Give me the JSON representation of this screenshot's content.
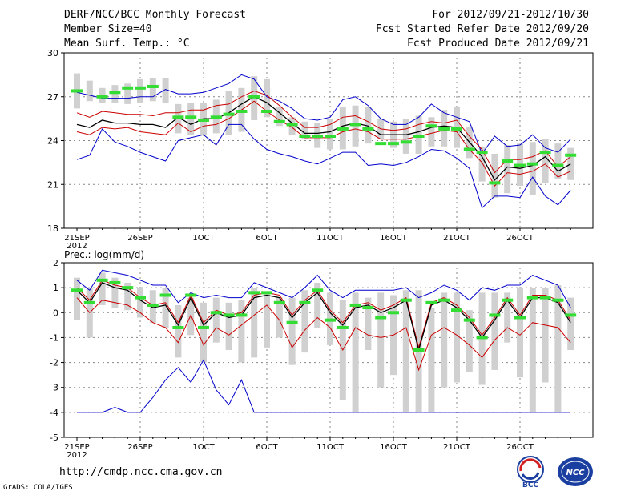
{
  "header": {
    "title": "DERF/NCC/BCC Monthly Forecast",
    "member_size": "Member Size=40",
    "variable": "Mean Surf. Temp.: °C",
    "period": "For 2012/09/21-2012/10/30",
    "fcst_started": "Fcst Started Refer Date 2012/09/20",
    "fcst_produced": "Fcst Produced Date 2012/09/21"
  },
  "footer": {
    "url": "http://cmdp.ncc.cma.gov.cn",
    "grads": "GrADS: COLA/IGES",
    "logo_bcc": "BCC",
    "logo_ncc": "NCC"
  },
  "colors": {
    "mean": "#000000",
    "spread": "#cc0000",
    "extreme": "#0000cc",
    "box": "#d0d0d0",
    "obs": "#33dd33"
  },
  "chart_data": [
    {
      "type": "ensemble-box-line",
      "title": "Mean Surf. Temp.: °C",
      "x_tick_labels": [
        "21SEP",
        "26SEP",
        "1OCT",
        "6OCT",
        "11OCT",
        "16OCT",
        "21OCT",
        "26OCT"
      ],
      "x_year_label": "2012",
      "x_start_day": 0,
      "days": 40,
      "ylim": [
        18,
        30
      ],
      "y_ticks": [
        18,
        21,
        24,
        27,
        30
      ],
      "box_low": [
        26.2,
        26.7,
        26.6,
        26.6,
        26.5,
        26.6,
        26.7,
        26.6,
        24.5,
        24.4,
        24.4,
        24.5,
        24.4,
        24.6,
        25.4,
        25.6,
        25.0,
        24.4,
        24.1,
        23.5,
        23.4,
        23.4,
        23.6,
        23.8,
        24.1,
        23.5,
        23.1,
        23.1,
        23.6,
        23.6,
        23.5,
        22.8,
        21.2,
        20.1,
        20.4,
        20.9,
        20.3,
        21.1,
        21.4,
        21.3
      ],
      "box_high": [
        28.6,
        28.1,
        27.6,
        27.8,
        27.9,
        28.2,
        28.3,
        28.3,
        26.5,
        26.6,
        26.6,
        26.8,
        27.4,
        27.6,
        28.4,
        28.2,
        26.3,
        25.6,
        25.3,
        25.2,
        25.5,
        26.3,
        26.4,
        26.3,
        25.5,
        25.3,
        25.5,
        25.7,
        25.6,
        26.1,
        26.3,
        24.9,
        23.6,
        23.1,
        23.7,
        23.8,
        23.9,
        24.1,
        23.8,
        23.5
      ],
      "mean": [
        25.1,
        24.9,
        25.4,
        25.2,
        25.2,
        25.1,
        25.1,
        24.9,
        25.6,
        25.1,
        25.5,
        25.5,
        25.9,
        26.5,
        27.0,
        26.6,
        25.9,
        25.2,
        24.5,
        24.5,
        24.6,
        25.0,
        25.2,
        25.0,
        24.4,
        24.4,
        24.4,
        24.6,
        24.9,
        25.0,
        24.9,
        23.9,
        22.9,
        21.3,
        22.2,
        22.1,
        22.3,
        22.9,
        21.9,
        22.4
      ],
      "upper": [
        25.9,
        25.6,
        26.0,
        25.9,
        25.8,
        25.8,
        25.7,
        25.9,
        25.9,
        26.1,
        26.1,
        26.4,
        26.5,
        27.0,
        27.4,
        27.1,
        26.4,
        25.6,
        24.9,
        24.9,
        25.1,
        25.6,
        25.7,
        25.3,
        24.8,
        24.7,
        24.8,
        25.1,
        25.3,
        25.2,
        25.4,
        24.3,
        23.4,
        21.8,
        22.7,
        22.7,
        22.9,
        23.3,
        22.2,
        22.9
      ],
      "lower": [
        24.6,
        24.4,
        24.9,
        24.8,
        24.9,
        24.6,
        24.5,
        24.4,
        25.2,
        24.6,
        25.0,
        25.1,
        25.5,
        26.1,
        26.7,
        26.0,
        25.4,
        24.9,
        24.2,
        24.2,
        24.2,
        24.6,
        24.8,
        24.6,
        24.1,
        24.1,
        24.1,
        24.3,
        24.5,
        24.7,
        24.6,
        23.4,
        22.5,
        20.9,
        21.8,
        21.7,
        21.9,
        22.4,
        21.5,
        21.9
      ],
      "max": [
        27.3,
        27.1,
        26.9,
        26.9,
        26.9,
        27.0,
        27.0,
        27.5,
        27.2,
        27.2,
        27.3,
        27.6,
        27.9,
        28.5,
        28.2,
        27.0,
        26.7,
        26.2,
        25.5,
        25.4,
        25.6,
        26.8,
        27.0,
        26.4,
        25.5,
        25.1,
        25.1,
        25.6,
        26.5,
        25.9,
        25.6,
        25.3,
        23.1,
        24.3,
        23.6,
        23.7,
        24.4,
        23.5,
        23.2,
        24.1
      ],
      "min": [
        22.7,
        23.0,
        24.8,
        23.9,
        23.6,
        23.2,
        22.9,
        22.6,
        24.0,
        24.2,
        24.4,
        23.7,
        25.1,
        25.1,
        24.1,
        23.4,
        23.1,
        22.9,
        22.6,
        22.4,
        22.8,
        23.2,
        23.2,
        22.3,
        22.4,
        22.3,
        22.5,
        22.9,
        23.4,
        23.3,
        22.8,
        22.1,
        19.4,
        20.2,
        20.2,
        20.1,
        21.5,
        20.2,
        19.6,
        20.6
      ],
      "obs": [
        27.4,
        null,
        27.0,
        27.3,
        27.6,
        27.6,
        27.7,
        null,
        25.6,
        25.6,
        25.4,
        25.6,
        25.8,
        26.0,
        27.0,
        26.0,
        25.3,
        25.1,
        24.3,
        24.3,
        24.3,
        24.8,
        25.1,
        24.8,
        23.8,
        23.8,
        23.9,
        24.3,
        25.0,
        24.8,
        24.8,
        23.4,
        23.2,
        21.1,
        22.6,
        22.3,
        22.4,
        23.2,
        22.3,
        23.0
      ]
    },
    {
      "type": "ensemble-box-line",
      "title": "Prec.: log(mm/d)",
      "x_tick_labels": [
        "21SEP",
        "26SEP",
        "1OCT",
        "6OCT",
        "11OCT",
        "16OCT",
        "21OCT",
        "26OCT"
      ],
      "x_year_label": "2012",
      "x_start_day": 0,
      "days": 40,
      "ylim": [
        -5,
        2
      ],
      "y_ticks": [
        -5,
        -4,
        -3,
        -2,
        -1,
        0,
        1,
        2
      ],
      "box_low": [
        -0.3,
        -1.0,
        0.3,
        0.2,
        0.1,
        -0.2,
        -0.4,
        -0.6,
        -1.8,
        -0.9,
        -2.0,
        -1.2,
        -1.5,
        -2.0,
        -1.8,
        -1.4,
        -1.0,
        -2.1,
        -1.6,
        -0.6,
        -1.3,
        -3.5,
        -4.0,
        -1.5,
        -3.0,
        -2.5,
        -4.0,
        -4.0,
        -4.0,
        -3.0,
        -2.8,
        -2.4,
        -2.9,
        -2.3,
        -1.2,
        -2.6,
        -4.0,
        -2.8,
        -4.0,
        -1.5
      ],
      "box_high": [
        1.4,
        1.0,
        1.6,
        1.4,
        1.2,
        1.0,
        0.9,
        1.0,
        0.3,
        0.6,
        0.4,
        0.6,
        0.4,
        0.5,
        1.0,
        0.8,
        0.6,
        0.6,
        0.9,
        1.2,
        0.8,
        0.5,
        0.8,
        0.6,
        0.8,
        0.7,
        0.9,
        0.9,
        0.2,
        0.8,
        0.8,
        0.1,
        0.8,
        0.8,
        0.8,
        1.0,
        1.0,
        1.0,
        1.1,
        0.6
      ],
      "mean": [
        0.9,
        0.4,
        1.2,
        1.0,
        0.9,
        0.5,
        0.2,
        0.3,
        -0.5,
        0.6,
        -0.5,
        0.0,
        -0.2,
        -0.1,
        0.6,
        0.7,
        0.6,
        -0.2,
        0.4,
        0.8,
        0.0,
        -0.5,
        0.2,
        0.3,
        0.0,
        0.2,
        0.5,
        -1.5,
        0.3,
        0.5,
        0.2,
        -0.3,
        -1.0,
        -0.3,
        0.5,
        -0.2,
        0.6,
        0.6,
        0.4,
        -0.4
      ],
      "upper": [
        1.0,
        0.5,
        1.3,
        1.1,
        1.0,
        0.6,
        0.3,
        0.4,
        -0.4,
        0.7,
        -0.4,
        0.1,
        -0.1,
        0.0,
        0.7,
        0.8,
        0.7,
        -0.1,
        0.5,
        0.9,
        0.1,
        -0.4,
        0.3,
        0.4,
        0.1,
        0.3,
        0.6,
        -1.4,
        0.4,
        0.6,
        0.3,
        -0.2,
        -0.9,
        -0.2,
        0.6,
        -0.1,
        0.7,
        0.7,
        0.5,
        -0.3
      ],
      "lower": [
        0.6,
        0.0,
        0.5,
        0.4,
        0.3,
        0.0,
        -0.4,
        -0.6,
        -1.2,
        -0.1,
        -1.3,
        -0.6,
        -0.9,
        -0.5,
        -0.1,
        0.3,
        -0.3,
        -1.4,
        -0.7,
        -0.2,
        -0.6,
        -1.5,
        -0.6,
        -0.9,
        -1.0,
        -0.9,
        -0.6,
        -2.3,
        -0.9,
        -0.6,
        -0.9,
        -1.3,
        -1.8,
        -1.1,
        -0.6,
        -0.9,
        -0.4,
        -0.5,
        -0.6,
        -1.2
      ],
      "max": [
        1.3,
        0.9,
        1.7,
        1.6,
        1.5,
        1.3,
        1.1,
        1.1,
        0.4,
        0.8,
        0.6,
        0.7,
        0.6,
        0.6,
        1.2,
        1.0,
        0.8,
        0.6,
        1.0,
        1.5,
        0.9,
        0.6,
        0.9,
        0.9,
        0.9,
        0.9,
        1.0,
        0.6,
        0.8,
        1.1,
        0.9,
        0.5,
        1.0,
        0.9,
        1.1,
        1.1,
        1.5,
        1.3,
        1.1,
        0.2
      ],
      "min": [
        -4.0,
        -4.0,
        -4.0,
        -3.8,
        -4.0,
        -4.0,
        -3.4,
        -2.7,
        -2.2,
        -2.8,
        -1.9,
        -3.1,
        -3.7,
        -2.7,
        -4.0,
        -4.0,
        -4.0,
        -4.0,
        -4.0,
        -4.0,
        -4.0,
        -4.0,
        -4.0,
        -4.0,
        -4.0,
        -4.0,
        -4.0,
        -4.0,
        -4.0,
        -4.0,
        -4.0,
        -4.0,
        -4.0,
        -4.0,
        -4.0,
        -4.0,
        -4.0,
        -4.0,
        -4.0,
        -4.0
      ],
      "obs": [
        0.9,
        0.4,
        1.3,
        1.2,
        1.0,
        0.6,
        0.3,
        0.7,
        -0.6,
        0.7,
        -0.6,
        0.0,
        -0.1,
        -0.1,
        0.8,
        0.8,
        0.4,
        -0.4,
        0.4,
        0.9,
        -0.3,
        -0.6,
        0.3,
        0.2,
        -0.2,
        0.0,
        0.5,
        -1.5,
        0.4,
        0.5,
        0.1,
        -0.3,
        -1.0,
        -0.1,
        0.5,
        -0.2,
        0.6,
        0.6,
        0.5,
        -0.1
      ]
    }
  ]
}
